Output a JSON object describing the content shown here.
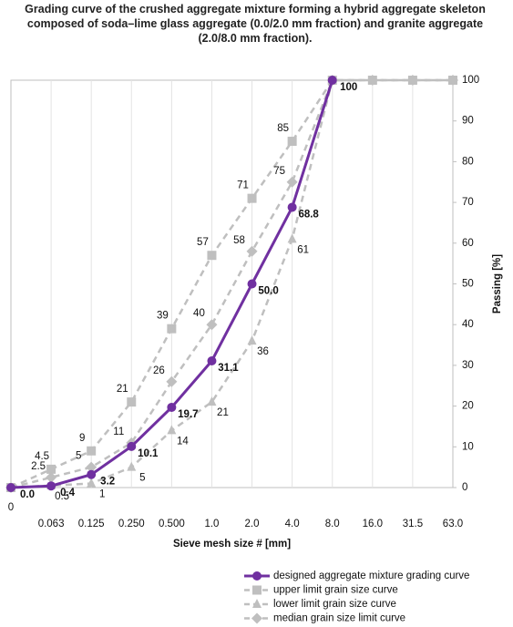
{
  "chart_data": {
    "type": "line",
    "title": "Grading curve of the crushed aggregate mixture forming a hybrid aggregate skeleton composed of soda–lime glass aggregate (0.0/2.0 mm fraction) and granite aggregate (2.0/8.0 mm fraction).",
    "x_label": "Sieve mesh size # [mm]",
    "y_label": "Passing [%]",
    "categories": [
      "0",
      "0.063",
      "0.125",
      "0.250",
      "0.500",
      "1.0",
      "2.0",
      "4.0",
      "8.0",
      "16.0",
      "31.5",
      "63.0"
    ],
    "ylim": [
      0,
      100
    ],
    "yticks": [
      0,
      10,
      20,
      30,
      40,
      50,
      60,
      70,
      80,
      90,
      100
    ],
    "grid": true,
    "series": [
      {
        "name": "designed aggregate mixture grading curve",
        "color": "#7030a0",
        "marker": "circle",
        "dashed": false,
        "values": [
          0,
          0.4,
          3.2,
          10.1,
          19.7,
          31.1,
          50.0,
          68.8,
          100,
          null,
          null,
          null
        ],
        "value_labels": [
          "0.0",
          "0.4",
          "3.2",
          "10.1",
          "19.7",
          "31.1",
          "50.0",
          "68.8",
          "100",
          null,
          null,
          null
        ]
      },
      {
        "name": "upper limit grain size curve",
        "color": "#bfbfbf",
        "marker": "square",
        "dashed": true,
        "values": [
          0,
          4.5,
          9,
          21,
          39,
          57,
          71,
          85,
          100,
          100,
          100,
          100
        ],
        "value_labels": [
          null,
          "4.5",
          "9",
          "21",
          "39",
          "57",
          "71",
          "85",
          null,
          null,
          null,
          null
        ]
      },
      {
        "name": "lower limit grain size curve",
        "color": "#bfbfbf",
        "marker": "triangle",
        "dashed": true,
        "values": [
          0,
          0.5,
          1,
          5,
          14,
          21,
          36,
          61,
          100,
          100,
          100,
          100
        ],
        "value_labels": [
          null,
          "0.5",
          "1",
          "5",
          "14",
          "21",
          "36",
          "61",
          null,
          null,
          null,
          null
        ]
      },
      {
        "name": "median grain size limit curve",
        "color": "#bfbfbf",
        "marker": "diamond",
        "dashed": true,
        "values": [
          0,
          2.5,
          5,
          11,
          26,
          40,
          58,
          75,
          100,
          100,
          100,
          100
        ],
        "value_labels": [
          null,
          "2.5",
          "5",
          "11",
          "26",
          "40",
          "58",
          "75",
          null,
          null,
          null,
          null
        ]
      }
    ]
  }
}
